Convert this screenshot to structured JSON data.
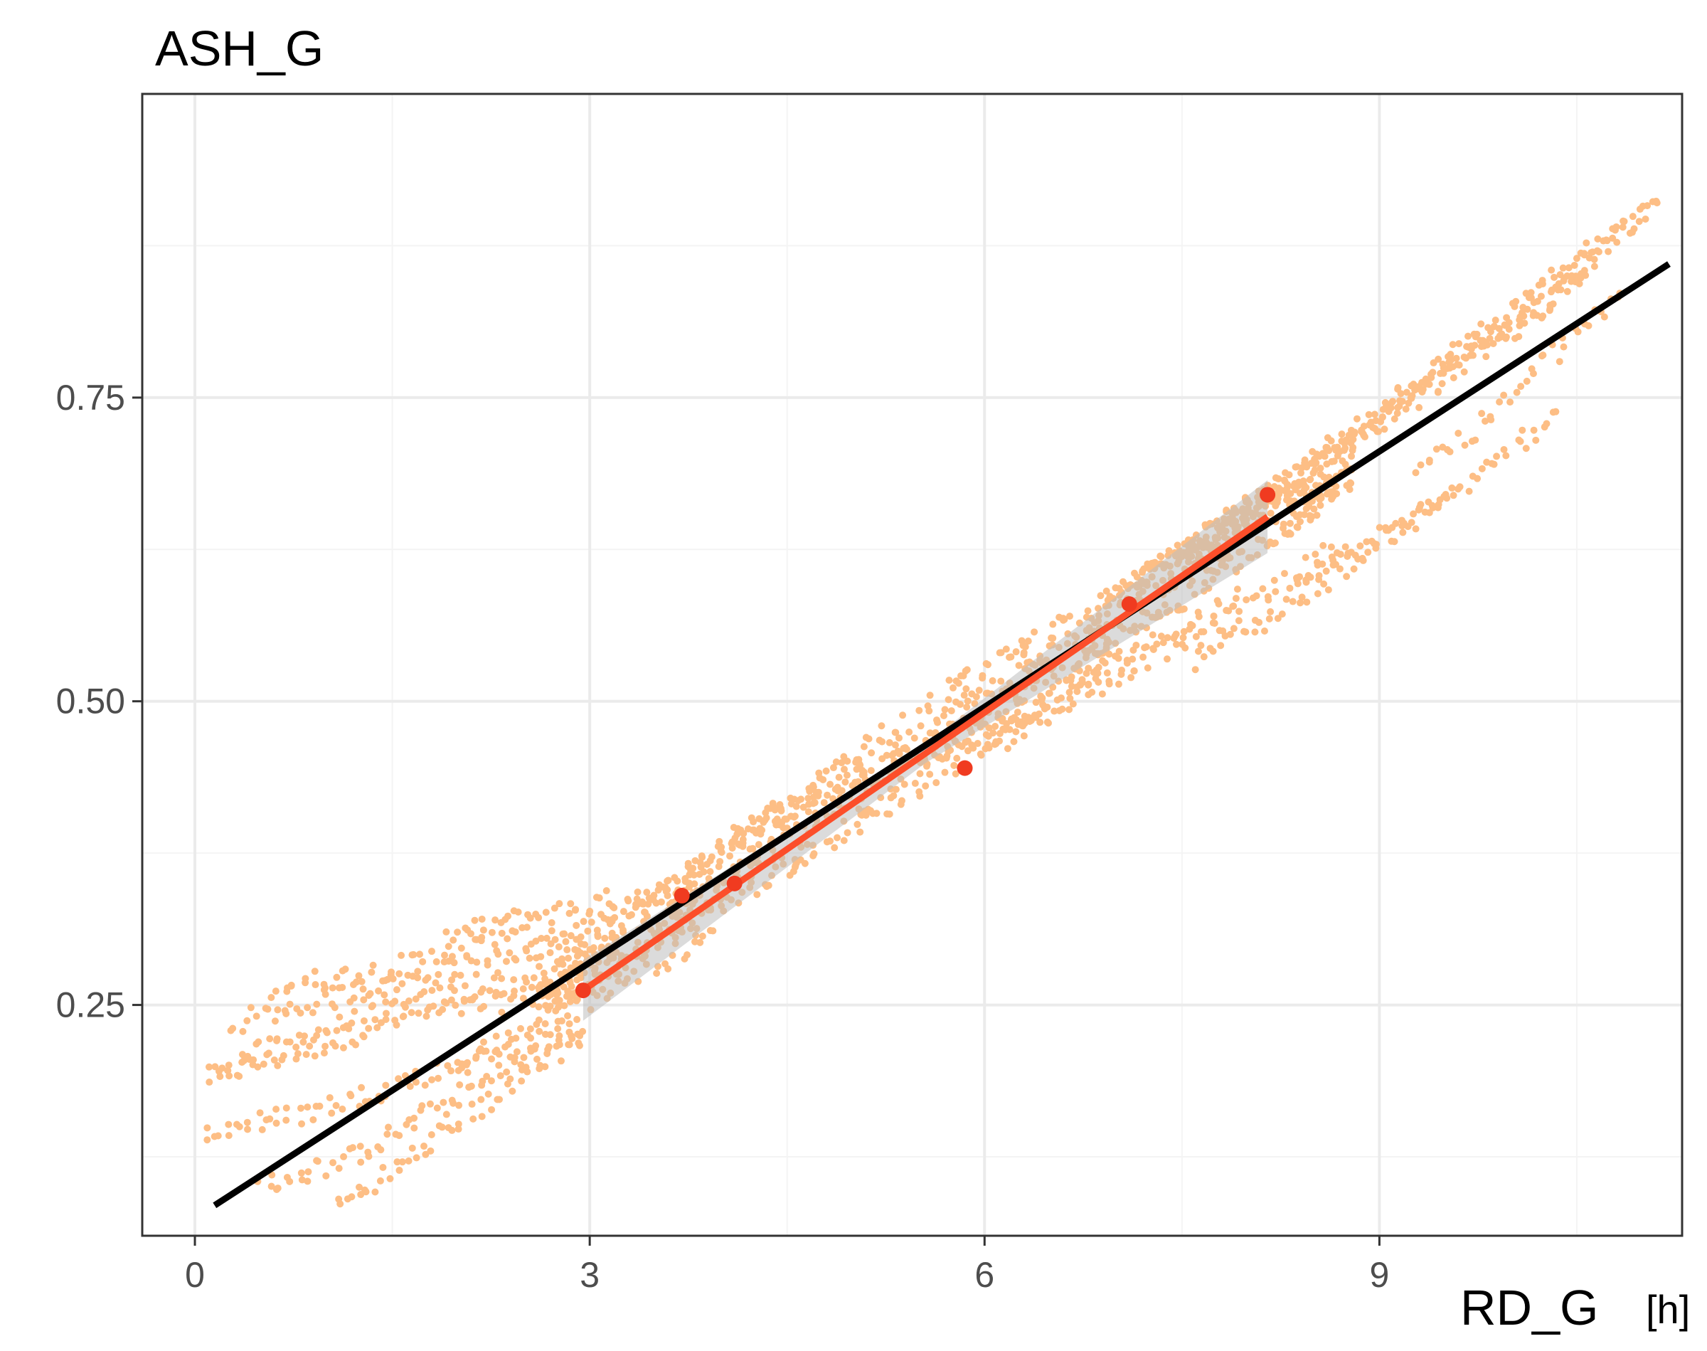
{
  "chart_data": {
    "type": "scatter",
    "title": "ASH_G",
    "xlabel": "RD_G",
    "xlabel_unit": "[h]",
    "ylabel": "",
    "xlim": [
      -0.4,
      11.3
    ],
    "ylim": [
      0.06,
      1.0
    ],
    "x_ticks": [
      0,
      3,
      6,
      9
    ],
    "x_tick_labels": [
      "0",
      "3",
      "6",
      "9"
    ],
    "y_ticks": [
      0.25,
      0.5,
      0.75
    ],
    "y_tick_labels": [
      "0.25",
      "0.50",
      "0.75"
    ],
    "x_minor_ticks": [
      1.5,
      4.5,
      7.5,
      10.5
    ],
    "y_minor_ticks": [
      0.125,
      0.375,
      0.625,
      0.875
    ],
    "grid": true,
    "colors": {
      "background": "#ffffff",
      "panel_border": "#333333",
      "grid_major": "#ebebeb",
      "grid_minor": "#f4f4f4",
      "simulated_points": "#fdbe85",
      "observed_points": "#f03b20",
      "fit_line": "#000000",
      "obs_fit_line": "#fc4e2a",
      "confidence_band": "#bdbdbd"
    },
    "series": [
      {
        "kind": "simulated-trajectories",
        "trajectories": [
          {
            "x": [
              0.1,
              0.9,
              1.6,
              2.2,
              2.7,
              3.0
            ],
            "y": [
              0.19,
              0.215,
              0.24,
              0.25,
              0.26,
              0.265
            ]
          },
          {
            "x": [
              0.2,
              1.0,
              1.8,
              2.5,
              3.0
            ],
            "y": [
              0.2,
              0.23,
              0.255,
              0.27,
              0.28
            ]
          },
          {
            "x": [
              0.3,
              1.2,
              2.0,
              2.6,
              3.0
            ],
            "y": [
              0.235,
              0.26,
              0.28,
              0.29,
              0.3
            ]
          },
          {
            "x": [
              0.6,
              1.5,
              2.2,
              2.8,
              3.3
            ],
            "y": [
              0.265,
              0.28,
              0.3,
              0.31,
              0.32
            ]
          },
          {
            "x": [
              1.9,
              2.4,
              2.9,
              3.5,
              4.0
            ],
            "y": [
              0.305,
              0.32,
              0.33,
              0.345,
              0.355
            ]
          },
          {
            "x": [
              0.1,
              0.8,
              1.4,
              2.0,
              2.6,
              3.0
            ],
            "y": [
              0.145,
              0.16,
              0.18,
              0.2,
              0.22,
              0.235
            ]
          },
          {
            "x": [
              0.5,
              1.1,
              1.6,
              2.1,
              2.6,
              3.0
            ],
            "y": [
              0.1,
              0.12,
              0.15,
              0.18,
              0.21,
              0.235
            ]
          },
          {
            "x": [
              1.1,
              1.6,
              2.1,
              2.6,
              3.0
            ],
            "y": [
              0.085,
              0.12,
              0.16,
              0.2,
              0.23
            ]
          },
          {
            "x": [
              2.0,
              2.5,
              3.0,
              3.5,
              4.0
            ],
            "y": [
              0.2,
              0.23,
              0.255,
              0.285,
              0.31
            ]
          },
          {
            "x": [
              4.0,
              4.8,
              5.6,
              6.4,
              7.0
            ],
            "y": [
              0.385,
              0.425,
              0.465,
              0.51,
              0.545
            ]
          },
          {
            "x": [
              5.5,
              6.0,
              6.5,
              7.0,
              7.5,
              8.0
            ],
            "y": [
              0.445,
              0.47,
              0.495,
              0.53,
              0.56,
              0.59
            ]
          },
          {
            "x": [
              6.2,
              6.8,
              7.3,
              7.8,
              8.3,
              8.8
            ],
            "y": [
              0.47,
              0.51,
              0.54,
              0.565,
              0.6,
              0.635
            ]
          },
          {
            "x": [
              7.6,
              8.1,
              8.6,
              9.1,
              9.6
            ],
            "y": [
              0.535,
              0.565,
              0.6,
              0.64,
              0.675
            ]
          },
          {
            "x": [
              8.4,
              8.9,
              9.4,
              9.9,
              10.4
            ],
            "y": [
              0.6,
              0.625,
              0.66,
              0.695,
              0.745
            ]
          },
          {
            "x": [
              9.3,
              9.7,
              10.1,
              10.5,
              10.9
            ],
            "y": [
              0.695,
              0.72,
              0.76,
              0.805,
              0.835
            ]
          },
          {
            "x": [
              7.0,
              7.8,
              8.6,
              9.4,
              10.2,
              10.8
            ],
            "y": [
              0.59,
              0.65,
              0.7,
              0.76,
              0.82,
              0.88
            ]
          },
          {
            "x": [
              7.2,
              8.0,
              8.8,
              9.6,
              10.4,
              11.1
            ],
            "y": [
              0.6,
              0.66,
              0.72,
              0.785,
              0.85,
              0.905
            ]
          },
          {
            "x": [
              7.4,
              8.2,
              9.0,
              9.8,
              10.6,
              11.2
            ],
            "y": [
              0.615,
              0.675,
              0.74,
              0.805,
              0.87,
              0.915
            ]
          },
          {
            "x": [
              6.8,
              7.6,
              8.4,
              9.2,
              10.0,
              10.6
            ],
            "y": [
              0.565,
              0.625,
              0.685,
              0.745,
              0.805,
              0.855
            ]
          }
        ]
      },
      {
        "kind": "observed",
        "x": [
          2.95,
          3.7,
          4.1,
          5.85,
          7.1,
          8.15
        ],
        "y": [
          0.262,
          0.34,
          0.35,
          0.445,
          0.58,
          0.67
        ]
      },
      {
        "kind": "observed-fit",
        "x": [
          2.95,
          8.15
        ],
        "y": [
          0.262,
          0.652
        ],
        "band_halfwidth": [
          0.025,
          0.008,
          0.03
        ]
      },
      {
        "kind": "overall-fit",
        "x": [
          0.15,
          11.2
        ],
        "y": [
          0.085,
          0.86
        ]
      }
    ]
  }
}
